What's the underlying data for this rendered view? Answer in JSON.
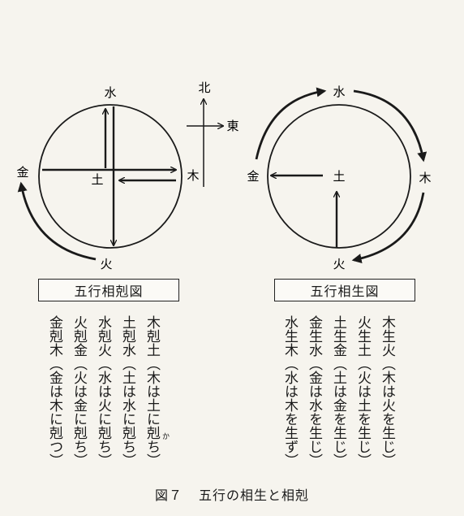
{
  "kokoku": {
    "nodes": {
      "water": "水",
      "wood": "木",
      "fire": "火",
      "earth": "土",
      "metal": "金"
    },
    "title": "五行相剋図",
    "rules": [
      "木剋土（木は土に剋ち）",
      "土剋水（土は水に剋ち）",
      "水剋火（水は火に剋ち）",
      "火剋金（火は金に剋ち）",
      "金剋木（金は木に剋つ）"
    ],
    "ruby": "か"
  },
  "compass": {
    "north": "北",
    "east": "東"
  },
  "sosho": {
    "nodes": {
      "water": "水",
      "wood": "木",
      "fire": "火",
      "earth": "土",
      "metal": "金"
    },
    "title": "五行相生図",
    "rules": [
      "木生火（木は火を生じ）",
      "火生土（火は土を生じ）",
      "土生金（土は金を生じ）",
      "金生水（金は水を生じ）",
      "水生木（水は木を生ず）"
    ]
  },
  "caption": {
    "number": "図７",
    "text": "五行の相生と相剋"
  }
}
